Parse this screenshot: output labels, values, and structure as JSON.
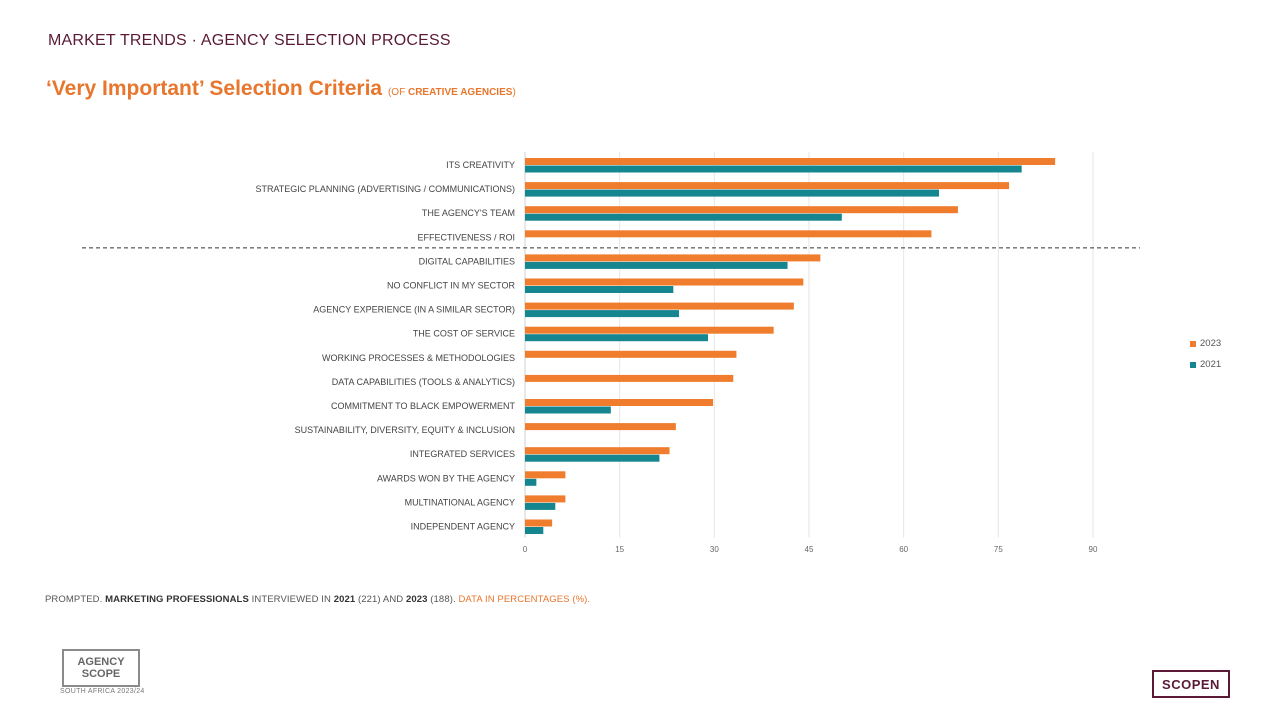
{
  "header": {
    "section_title": "MARKET TRENDS · AGENCY SELECTION PROCESS",
    "headline": "‘Very Important’ Selection Criteria",
    "headline_sub_prefix": "(OF",
    "headline_sub_bold": "CREATIVE  AGENCIES",
    "headline_sub_suffix": ")"
  },
  "footnote": {
    "p1": "PROMPTED. ",
    "b1": "MARKETING PROFESSIONALS",
    "p2": " INTERVIEWED IN ",
    "b2": "2021",
    "p3": " (221) AND ",
    "b3": "2023",
    "p4": " (188). ",
    "accent": "DATA IN PERCENTAGES (%)."
  },
  "logos": {
    "left_line1": "AGENCY",
    "left_line2": "SCOPE",
    "left_sub": "SOUTH AFRICA 2023/24",
    "right": "SCOPEN"
  },
  "colors": {
    "series_2023": "#ef7d2d",
    "series_2021": "#15858f",
    "title": "#5a1a35",
    "accent": "#e8762d"
  },
  "chart_data": {
    "type": "bar",
    "orientation": "horizontal",
    "categories": [
      "ITS CREATIVITY",
      "STRATEGIC PLANNING (ADVERTISING / COMMUNICATIONS)",
      "THE AGENCY'S TEAM",
      "EFFECTIVENESS / ROI",
      "DIGITAL CAPABILITIES",
      "NO CONFLICT IN MY SECTOR",
      "AGENCY EXPERIENCE (IN A SIMILAR SECTOR)",
      "THE COST OF SERVICE",
      "WORKING PROCESSES & METHODOLOGIES",
      "DATA CAPABILITIES (TOOLS & ANALYTICS)",
      "COMMITMENT TO BLACK EMPOWERMENT",
      "SUSTAINABILITY, DIVERSITY, EQUITY & INCLUSION",
      "INTEGRATED SERVICES",
      "AWARDS WON BY THE AGENCY",
      "MULTINATIONAL AGENCY",
      "INDEPENDENT AGENCY"
    ],
    "series": [
      {
        "name": "2023",
        "values": [
          84,
          76.7,
          68.6,
          64.4,
          46.8,
          44.1,
          42.6,
          39.4,
          33.5,
          33,
          29.8,
          23.9,
          22.9,
          6.4,
          6.4,
          4.3
        ]
      },
      {
        "name": "2021",
        "values": [
          78.7,
          65.6,
          50.2,
          null,
          41.6,
          23.5,
          24.4,
          29,
          null,
          null,
          13.6,
          null,
          21.3,
          1.8,
          4.8,
          2.9
        ]
      }
    ],
    "xlim": [
      0,
      90
    ],
    "xticks": [
      0,
      15,
      30,
      45,
      60,
      75,
      90
    ],
    "divider_after_index": 3,
    "legend_position": "right",
    "title": "",
    "xlabel": "",
    "ylabel": ""
  }
}
